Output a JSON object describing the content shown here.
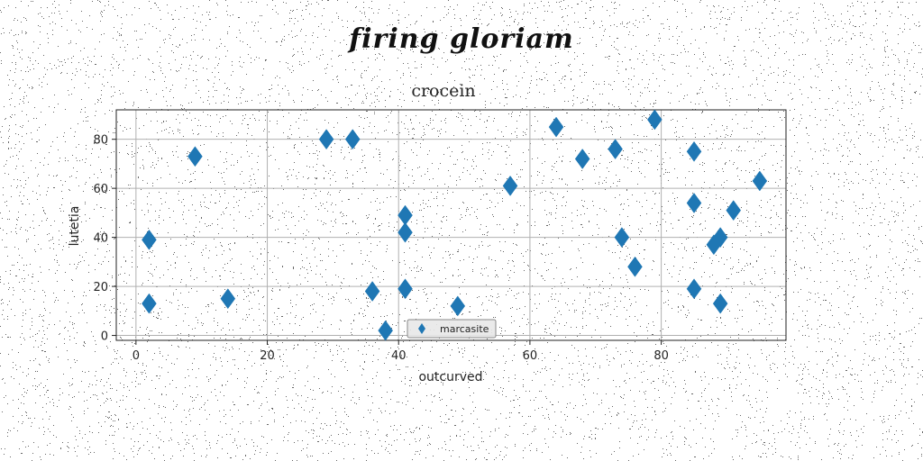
{
  "page": {
    "suptitle": "firing gloriam"
  },
  "chart_data": {
    "type": "scatter",
    "title": "crocein",
    "xlabel": "outcurved",
    "ylabel": "lutetia",
    "xlim": [
      -3,
      99
    ],
    "ylim": [
      -2,
      92
    ],
    "xticks": [
      0,
      20,
      40,
      60,
      80
    ],
    "yticks": [
      0,
      20,
      40,
      60,
      80
    ],
    "grid": true,
    "legend_position": "lower center",
    "marker": "thin-diamond",
    "series": [
      {
        "name": "marcasite",
        "color": "#1f77b4",
        "points": [
          [
            2,
            39
          ],
          [
            2,
            13
          ],
          [
            9,
            73
          ],
          [
            14,
            15
          ],
          [
            29,
            80
          ],
          [
            33,
            80
          ],
          [
            36,
            18
          ],
          [
            38,
            2
          ],
          [
            41,
            49
          ],
          [
            41,
            42
          ],
          [
            41,
            19
          ],
          [
            49,
            12
          ],
          [
            57,
            61
          ],
          [
            64,
            85
          ],
          [
            68,
            72
          ],
          [
            73,
            76
          ],
          [
            74,
            40
          ],
          [
            76,
            28
          ],
          [
            79,
            88
          ],
          [
            85,
            75
          ],
          [
            85,
            54
          ],
          [
            85,
            19
          ],
          [
            88,
            37
          ],
          [
            89,
            40
          ],
          [
            89,
            13
          ],
          [
            91,
            51
          ],
          [
            95,
            63
          ]
        ]
      }
    ]
  }
}
